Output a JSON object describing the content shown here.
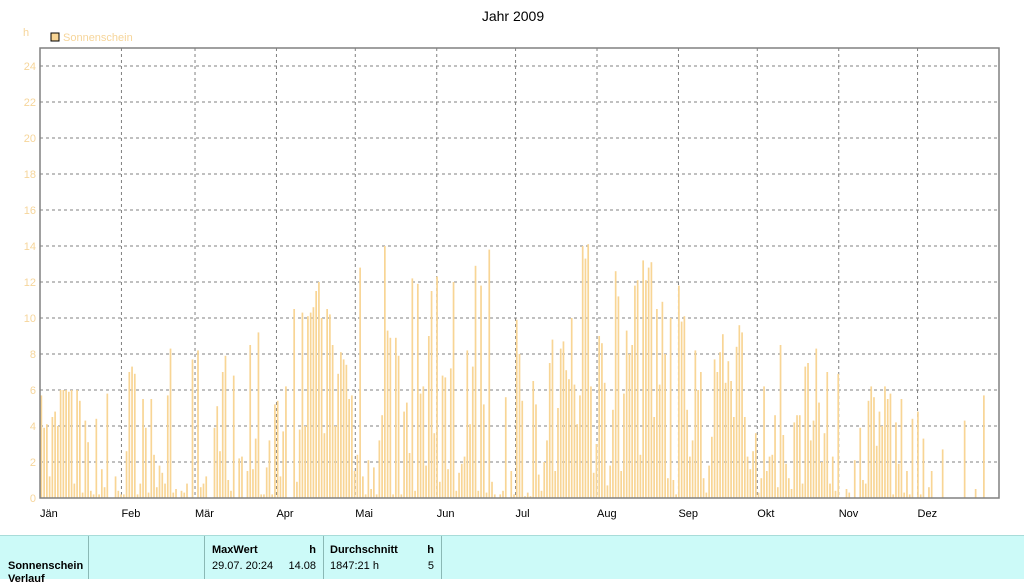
{
  "chart_data": {
    "type": "bar",
    "title": "Jahr 2009",
    "y_unit": "h",
    "ylim": [
      0,
      25
    ],
    "y_ticks": [
      0,
      2,
      4,
      6,
      8,
      10,
      12,
      14,
      16,
      18,
      20,
      22,
      24
    ],
    "x_tick_labels": [
      "Jän",
      "Feb",
      "Mär",
      "Apr",
      "Mai",
      "Jun",
      "Jul",
      "Aug",
      "Sep",
      "Okt",
      "Nov",
      "Dez"
    ],
    "grid": true,
    "legend_position": "top-left",
    "series": [
      {
        "name": "Sonnenschein",
        "color": "#f8d595",
        "values": [
          5.7,
          3.9,
          4.1,
          1.2,
          4.5,
          4.8,
          4.0,
          6.0,
          6.0,
          6.0,
          5.9,
          6.0,
          0.8,
          6.0,
          5.4,
          0.3,
          4.3,
          3.1,
          0.4,
          0.2,
          4.4,
          0.2,
          1.6,
          0.6,
          5.8,
          0.0,
          0.0,
          1.2,
          0.4,
          0.2,
          0.2,
          2.6,
          7.0,
          7.3,
          6.9,
          0.2,
          0.8,
          5.5,
          3.9,
          0.3,
          5.5,
          2.4,
          0.6,
          1.8,
          1.4,
          0.8,
          5.7,
          8.3,
          0.3,
          0.5,
          0.0,
          0.4,
          0.3,
          0.8,
          0.0,
          7.7,
          0.0,
          8.2,
          0.6,
          0.8,
          1.2,
          0.0,
          0.0,
          3.9,
          5.1,
          2.6,
          7.0,
          7.9,
          1.0,
          0.4,
          6.8,
          0.0,
          2.2,
          2.3,
          0.0,
          1.5,
          8.5,
          1.6,
          3.3,
          9.2,
          0.2,
          0.2,
          1.7,
          3.2,
          0.2,
          5.2,
          5.4,
          1.2,
          3.7,
          6.2,
          0.0,
          0.0,
          10.5,
          0.9,
          3.8,
          10.3,
          4.0,
          10.1,
          10.3,
          10.6,
          11.5,
          12.0,
          10.0,
          3.6,
          10.5,
          10.2,
          8.5,
          4.0,
          6.9,
          8.1,
          7.7,
          7.4,
          5.5,
          5.7,
          1.5,
          2.4,
          12.8,
          1.2,
          0.2,
          2.1,
          0.5,
          1.7,
          0.2,
          3.2,
          4.6,
          14.0,
          9.3,
          8.9,
          0.2,
          8.9,
          7.9,
          0.2,
          4.8,
          5.3,
          2.5,
          12.2,
          0.4,
          11.9,
          5.8,
          6.2,
          1.8,
          9.0,
          11.5,
          3.6,
          12.3,
          0.9,
          6.8,
          6.7,
          1.6,
          7.2,
          12.0,
          0.4,
          1.4,
          1.9,
          2.3,
          8.2,
          4.1,
          7.3,
          12.9,
          0.4,
          11.8,
          5.2,
          0.3,
          13.8,
          0.9,
          0.2,
          0.0,
          0.2,
          0.4,
          5.6,
          0.0,
          1.5,
          0.2,
          9.9,
          8.0,
          5.4,
          0.1,
          0.3,
          0.1,
          6.5,
          5.2,
          1.3,
          0.4,
          2.0,
          3.2,
          7.5,
          8.8,
          1.5,
          5.0,
          8.3,
          8.7,
          7.1,
          6.6,
          10.0,
          6.3,
          4.1,
          5.7,
          14.0,
          13.3,
          14.1,
          6.2,
          1.4,
          3.0,
          9.0,
          8.6,
          6.4,
          0.7,
          1.8,
          4.9,
          12.6,
          11.2,
          1.5,
          5.8,
          9.3,
          8.0,
          8.5,
          11.8,
          12.1,
          2.4,
          13.2,
          12.1,
          12.8,
          13.1,
          4.5,
          10.5,
          6.3,
          10.9,
          8.0,
          1.1,
          10.0,
          1.0,
          0.2,
          11.8,
          9.8,
          10.1,
          4.9,
          2.3,
          3.2,
          8.2,
          6.0,
          7.0,
          1.1,
          0.3,
          1.8,
          3.4,
          7.7,
          7.0,
          8.1,
          9.1,
          6.4,
          7.6,
          6.5,
          4.5,
          8.4,
          9.6,
          9.2,
          4.5,
          2.3,
          1.6,
          2.6,
          3.6,
          0.3,
          1.1,
          6.2,
          1.5,
          2.3,
          2.4,
          4.6,
          0.6,
          8.5,
          3.5,
          1.9,
          1.1,
          0.5,
          4.2,
          4.6,
          4.6,
          0.8,
          7.3,
          7.5,
          3.2,
          4.3,
          8.3,
          5.3,
          2.0,
          3.6,
          7.0,
          0.8,
          2.3,
          0.4,
          6.9,
          0.0,
          0.0,
          0.5,
          0.3,
          0.0,
          2.1,
          0.0,
          3.9,
          1.0,
          0.8,
          5.4,
          6.2,
          5.6,
          2.9,
          4.8,
          4.0,
          6.2,
          5.5,
          5.8,
          0.2,
          4.2,
          1.9,
          5.5,
          0.3,
          1.5,
          0.2,
          4.4,
          0.0,
          4.8,
          0.2,
          3.3,
          0.0,
          0.6,
          1.5,
          0.0,
          0.0,
          0.0,
          2.7,
          0.0,
          0.0,
          0.0,
          0.0,
          0.0,
          0.0,
          0.0,
          4.3,
          0.0,
          0.0,
          0.0,
          0.5,
          0.0,
          0.0,
          5.7,
          0.0,
          0.0,
          0.0,
          0.0,
          0.0
        ]
      }
    ]
  },
  "stats": {
    "row_label": "Sonnenschein",
    "row_label2": "Verlauf",
    "maxwert_header": "MaxWert",
    "maxwert_unit": "h",
    "maxwert_date": "29.07.  20:24",
    "maxwert_value": "14.08",
    "avg_header": "Durchschnitt",
    "avg_unit": "h",
    "avg_total": "1847:21 h",
    "avg_value": "5"
  }
}
